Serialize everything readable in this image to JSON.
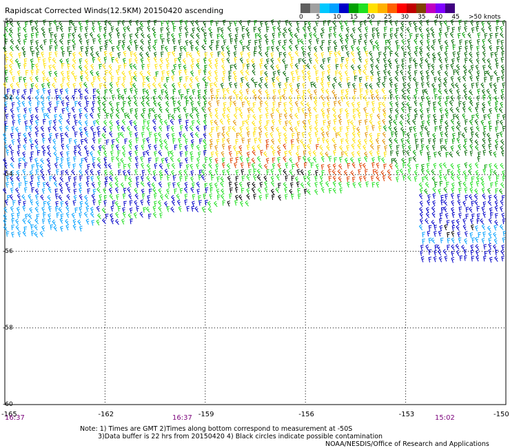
{
  "title": "Rapidscat Corrected Winds(12.5KM) 20150420 ascending",
  "legend": {
    "colors": [
      "#606060",
      "#a0a0a0",
      "#00c8ff",
      "#00a0ff",
      "#0000c8",
      "#00a000",
      "#20e020",
      "#ffe000",
      "#ffb000",
      "#ff6000",
      "#ff0000",
      "#c00000",
      "#804000",
      "#c000c0",
      "#8000ff",
      "#400080"
    ],
    "labels": [
      "0",
      "5",
      "10",
      "15",
      "20",
      "25",
      "30",
      "35",
      "40",
      "45",
      ">50 knots"
    ]
  },
  "axes": {
    "lat_labels": [
      "-50",
      "-52",
      "-54",
      "-56",
      "-58",
      "-60"
    ],
    "lon_labels": [
      "-165",
      "-162",
      "-159",
      "-156",
      "-153",
      "-150"
    ],
    "time_labels": [
      "16:37",
      "16:37",
      "15:02"
    ]
  },
  "notes": {
    "line1": "Note: 1) Times are GMT 2)Times along bottom correspond to measurement at -50S",
    "line2": "3)Data buffer is 22 hrs from 20150420 4) Black circles indicate possible contamination",
    "line3": "NOAA/NESDIS/Office of Research and Applications"
  },
  "map": {
    "lon_range": [
      -165,
      -150
    ],
    "lat_range": [
      -60,
      -50
    ],
    "grid": "dotted"
  },
  "wind_barb_colors": {
    "dark_green": "#006400",
    "green": "#00a000",
    "light_green": "#20e020",
    "yellow": "#ffe000",
    "orange": "#e09000",
    "red_orange": "#e04000",
    "blue": "#0000c8",
    "sky_blue": "#00a0ff",
    "black": "#000000"
  }
}
